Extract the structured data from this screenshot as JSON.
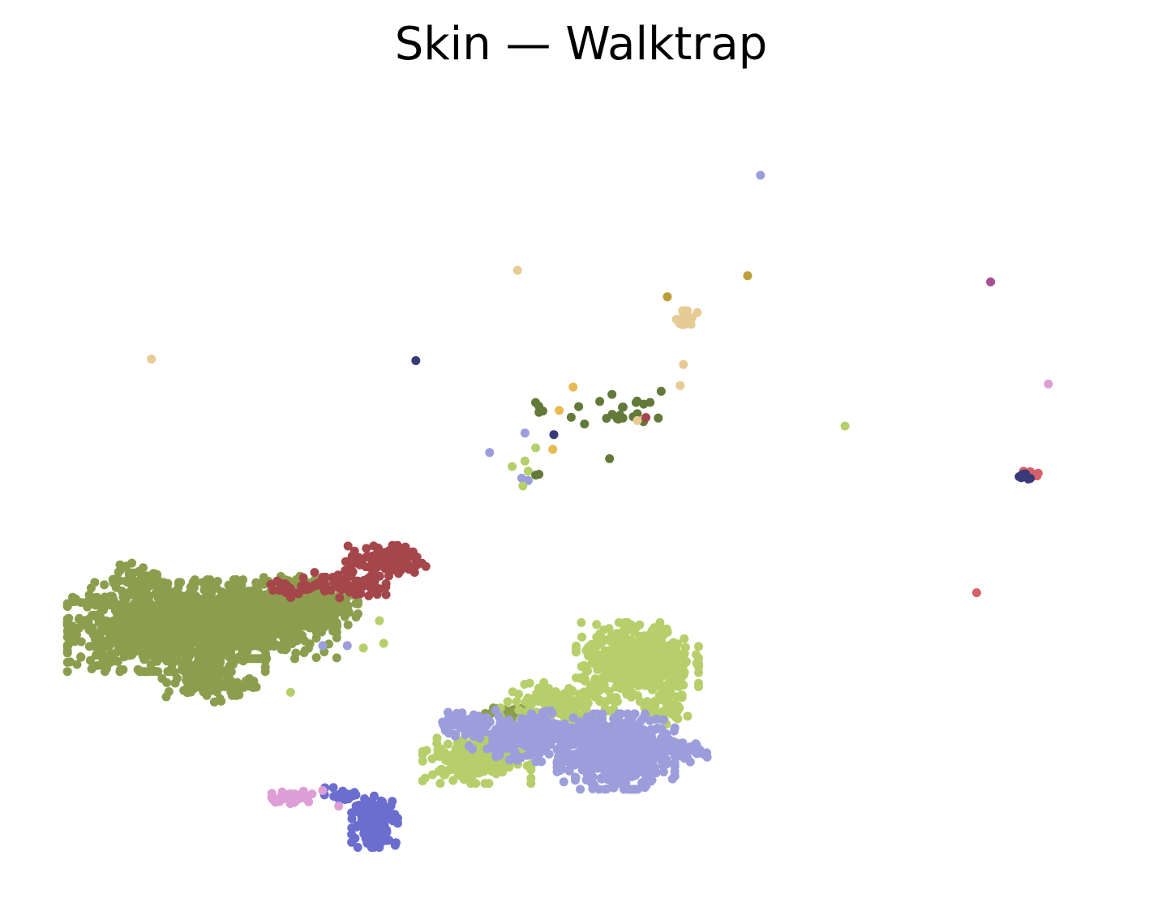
{
  "chart_data": {
    "type": "scatter",
    "title": "Skin — Walktrap",
    "xlabel": "",
    "ylabel": "",
    "axes_visible": false,
    "grid": false,
    "legend": "none",
    "xlim": [
      0,
      100
    ],
    "ylim": [
      0,
      100
    ],
    "clusters": [
      {
        "color": "#8c9e4e",
        "blobs": [
          {
            "cx": 11,
            "cy": 32,
            "sx": 4.2,
            "sy": 2.6,
            "n": 1100
          },
          {
            "cx": 19,
            "cy": 33,
            "sx": 3.6,
            "sy": 2.3,
            "n": 700
          },
          {
            "cx": 24.5,
            "cy": 35,
            "sx": 2,
            "sy": 1.6,
            "n": 200
          },
          {
            "cx": 15,
            "cy": 25,
            "sx": 2,
            "sy": 1.2,
            "n": 120
          },
          {
            "cx": 8.5,
            "cy": 38,
            "sx": 1.2,
            "sy": 1,
            "n": 50
          },
          {
            "cx": 42.5,
            "cy": 21,
            "sx": 1,
            "sy": 0.5,
            "n": 30
          }
        ]
      },
      {
        "color": "#a5474a",
        "blobs": [
          {
            "cx": 31.5,
            "cy": 40.5,
            "sx": 1.7,
            "sy": 0.9,
            "n": 140
          },
          {
            "cx": 28,
            "cy": 37.5,
            "sx": 1.6,
            "sy": 0.8,
            "n": 70
          },
          {
            "cx": 23,
            "cy": 37,
            "sx": 1.2,
            "sy": 0.6,
            "n": 30
          }
        ]
      },
      {
        "color": "#b6cf6a",
        "blobs": [
          {
            "cx": 55,
            "cy": 27.5,
            "sx": 2.6,
            "sy": 2.3,
            "n": 450
          },
          {
            "cx": 47.5,
            "cy": 22,
            "sx": 2.4,
            "sy": 1.3,
            "n": 150
          },
          {
            "cx": 40,
            "cy": 15,
            "sx": 2.3,
            "sy": 1.4,
            "n": 220
          },
          {
            "cx": 57.5,
            "cy": 22,
            "sx": 1,
            "sy": 1.6,
            "n": 50
          }
        ]
      },
      {
        "color": "#9c9edb",
        "blobs": [
          {
            "cx": 53,
            "cy": 16,
            "sx": 2.5,
            "sy": 2.2,
            "n": 550
          },
          {
            "cx": 45,
            "cy": 18,
            "sx": 2.6,
            "sy": 1.5,
            "n": 250
          },
          {
            "cx": 59,
            "cy": 16,
            "sx": 1.2,
            "sy": 0.6,
            "n": 50
          },
          {
            "cx": 38.5,
            "cy": 19.5,
            "sx": 1.2,
            "sy": 0.7,
            "n": 60
          }
        ]
      },
      {
        "color": "#6b6ecf",
        "blobs": [
          {
            "cx": 30.5,
            "cy": 7,
            "sx": 1,
            "sy": 1.5,
            "n": 160
          },
          {
            "cx": 27.5,
            "cy": 10.5,
            "sx": 0.8,
            "sy": 0.4,
            "n": 25
          }
        ]
      },
      {
        "color": "#de9ed6",
        "blobs": [
          {
            "cx": 22.5,
            "cy": 10.2,
            "sx": 1,
            "sy": 0.4,
            "n": 40
          }
        ]
      },
      {
        "color": "#637939",
        "blobs": [
          {
            "cx": 54,
            "cy": 60,
            "sx": 2.4,
            "sy": 1.3,
            "n": 22
          },
          {
            "cx": 46,
            "cy": 60,
            "sx": 0.6,
            "sy": 0.5,
            "n": 4
          }
        ]
      },
      {
        "color": "#e7cb94",
        "blobs": [
          {
            "cx": 59.5,
            "cy": 71.5,
            "sx": 0.5,
            "sy": 0.5,
            "n": 22
          }
        ]
      },
      {
        "color": "#d6616b",
        "blobs": [
          {
            "cx": 91.8,
            "cy": 51.6,
            "sx": 0.35,
            "sy": 0.25,
            "n": 20
          }
        ]
      },
      {
        "color": "#393b79",
        "blobs": [
          {
            "cx": 91.1,
            "cy": 51.3,
            "sx": 0.28,
            "sy": 0.22,
            "n": 14
          }
        ]
      }
    ],
    "points": [
      {
        "x": 66.5,
        "y": 90.0,
        "color": "#9c9edb"
      },
      {
        "x": 43.8,
        "y": 77.8,
        "color": "#e7cb94"
      },
      {
        "x": 65.3,
        "y": 77.1,
        "color": "#bd9e39"
      },
      {
        "x": 57.8,
        "y": 74.4,
        "color": "#bd9e39"
      },
      {
        "x": 88.0,
        "y": 76.3,
        "color": "#a55194"
      },
      {
        "x": 9.6,
        "y": 66.4,
        "color": "#e7cb94"
      },
      {
        "x": 34.3,
        "y": 66.2,
        "color": "#393b79"
      },
      {
        "x": 49.0,
        "y": 62.8,
        "color": "#e7ba52"
      },
      {
        "x": 47.7,
        "y": 59.8,
        "color": "#e7ba52"
      },
      {
        "x": 47.1,
        "y": 54.8,
        "color": "#e7ba52"
      },
      {
        "x": 59.0,
        "y": 63.0,
        "color": "#e7cb94"
      },
      {
        "x": 59.3,
        "y": 65.7,
        "color": "#e7cb94"
      },
      {
        "x": 55.0,
        "y": 58.5,
        "color": "#e7cb94"
      },
      {
        "x": 47.2,
        "y": 56.7,
        "color": "#393b79"
      },
      {
        "x": 44.5,
        "y": 56.9,
        "color": "#9c9edb"
      },
      {
        "x": 41.2,
        "y": 54.4,
        "color": "#9c9edb"
      },
      {
        "x": 44.2,
        "y": 51.1,
        "color": "#9c9edb"
      },
      {
        "x": 44.8,
        "y": 50.8,
        "color": "#9c9edb"
      },
      {
        "x": 45.5,
        "y": 55.0,
        "color": "#b5cf6b"
      },
      {
        "x": 44.5,
        "y": 53.3,
        "color": "#b5cf6b"
      },
      {
        "x": 43.3,
        "y": 52.6,
        "color": "#b5cf6b"
      },
      {
        "x": 44.8,
        "y": 52.0,
        "color": "#b5cf6b"
      },
      {
        "x": 44.3,
        "y": 50.1,
        "color": "#b5cf6b"
      },
      {
        "x": 45.5,
        "y": 51.5,
        "color": "#637939"
      },
      {
        "x": 45.8,
        "y": 51.6,
        "color": "#637939"
      },
      {
        "x": 52.4,
        "y": 53.6,
        "color": "#637939"
      },
      {
        "x": 55.8,
        "y": 58.9,
        "color": "#a5474a"
      },
      {
        "x": 74.4,
        "y": 57.8,
        "color": "#b5cf6b"
      },
      {
        "x": 93.4,
        "y": 63.2,
        "color": "#de9ed6"
      },
      {
        "x": 86.7,
        "y": 36.4,
        "color": "#d6616b"
      },
      {
        "x": 22.6,
        "y": 23.6,
        "color": "#b5cf6b"
      },
      {
        "x": 31.3,
        "y": 29.9,
        "color": "#b5cf6b"
      },
      {
        "x": 29.4,
        "y": 29.3,
        "color": "#b5cf6b"
      },
      {
        "x": 30.9,
        "y": 32.8,
        "color": "#b5cf6b"
      },
      {
        "x": 25.6,
        "y": 29.6,
        "color": "#9c9edb"
      },
      {
        "x": 27.9,
        "y": 29.6,
        "color": "#9c9edb"
      },
      {
        "x": 27.1,
        "y": 9.0,
        "color": "#de9ed6"
      },
      {
        "x": 25.6,
        "y": 11.0,
        "color": "#de9ed6"
      },
      {
        "x": 29.9,
        "y": 36.0,
        "color": "#a5474a"
      },
      {
        "x": 30.9,
        "y": 36.9,
        "color": "#a5474a"
      }
    ]
  }
}
